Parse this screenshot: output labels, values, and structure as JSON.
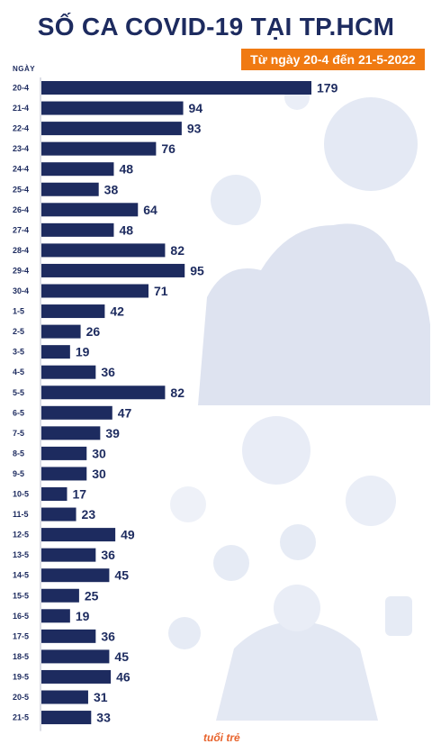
{
  "chart_data": {
    "type": "bar",
    "orientation": "horizontal",
    "title": "SỐ CA COVID-19 TẠI TP.HCM",
    "subtitle": "Từ ngày 20-4 đến 21-5-2022",
    "ylabel": "NGÀY",
    "xlabel": "",
    "categories": [
      "20-4",
      "21-4",
      "22-4",
      "23-4",
      "24-4",
      "25-4",
      "26-4",
      "27-4",
      "28-4",
      "29-4",
      "30-4",
      "1-5",
      "2-5",
      "3-5",
      "4-5",
      "5-5",
      "6-5",
      "7-5",
      "8-5",
      "9-5",
      "10-5",
      "11-5",
      "12-5",
      "13-5",
      "14-5",
      "15-5",
      "16-5",
      "17-5",
      "18-5",
      "19-5",
      "20-5",
      "21-5"
    ],
    "values": [
      179,
      94,
      93,
      76,
      48,
      38,
      64,
      48,
      82,
      95,
      71,
      42,
      26,
      19,
      36,
      82,
      47,
      39,
      30,
      30,
      17,
      23,
      49,
      36,
      45,
      25,
      19,
      36,
      45,
      46,
      31,
      33
    ],
    "xlim": [
      0,
      179
    ],
    "grid": false,
    "bar_color": "#1d2b5f",
    "label_color": "#1d2b5f",
    "axis_color": "#b8bccc"
  },
  "brand": {
    "logo_text": "tuổi trẻ"
  },
  "colors": {
    "subtitle_bg": "#f07a12",
    "decor": "#dde3f0"
  }
}
